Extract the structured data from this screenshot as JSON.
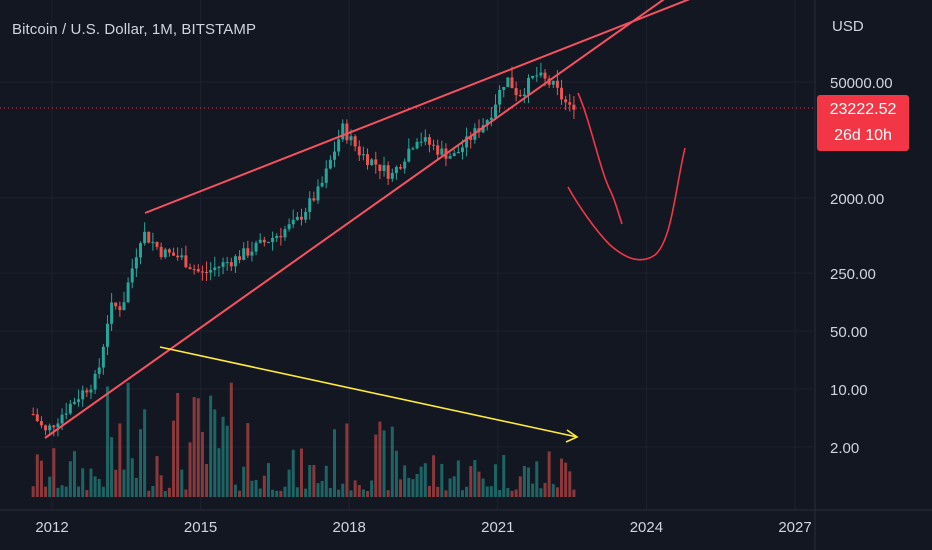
{
  "header": {
    "title": "Bitcoin / U.S. Dollar, 1M, BITSTAMP"
  },
  "price_axis": {
    "currency": "USD"
  },
  "last_price": {
    "value": "23222.52",
    "countdown": "26d 10h"
  },
  "colors": {
    "background": "#131722",
    "up": "#26a69a",
    "down": "#ef5350",
    "trendline": "#f7525f",
    "drawing": "#f23645",
    "arrow": "#ffeb3b",
    "text": "#d1d4dc",
    "grid": "#1e222d"
  },
  "chart_data": {
    "type": "candlestick",
    "title": "Bitcoin / U.S. Dollar, 1M, BITSTAMP",
    "x_axis": {
      "ticks": [
        "2012",
        "2015",
        "2018",
        "2021",
        "2024",
        "2027"
      ],
      "range": [
        2011.3,
        2027.6
      ]
    },
    "y_axis": {
      "scale": "log",
      "ticks": [
        "50000.00",
        "2000.00",
        "250.00",
        "50.00",
        "10.00",
        "2.00"
      ],
      "range": [
        0.9,
        280000
      ]
    },
    "series": [
      {
        "name": "BTCUSD monthly",
        "approx_points": [
          {
            "t": 2011.7,
            "close": 5
          },
          {
            "t": 2011.95,
            "close": 3
          },
          {
            "t": 2012.5,
            "close": 7
          },
          {
            "t": 2013.0,
            "close": 14
          },
          {
            "t": 2013.25,
            "close": 95
          },
          {
            "t": 2013.5,
            "close": 100
          },
          {
            "t": 2013.9,
            "close": 800
          },
          {
            "t": 2014.3,
            "close": 450
          },
          {
            "t": 2014.7,
            "close": 380
          },
          {
            "t": 2015.1,
            "close": 240
          },
          {
            "t": 2015.8,
            "close": 380
          },
          {
            "t": 2016.5,
            "close": 650
          },
          {
            "t": 2017.0,
            "close": 1000
          },
          {
            "t": 2017.5,
            "close": 2600
          },
          {
            "t": 2017.95,
            "close": 14000
          },
          {
            "t": 2018.3,
            "close": 7000
          },
          {
            "t": 2018.95,
            "close": 3800
          },
          {
            "t": 2019.45,
            "close": 11000
          },
          {
            "t": 2019.95,
            "close": 7200
          },
          {
            "t": 2020.2,
            "close": 6400
          },
          {
            "t": 2020.9,
            "close": 19000
          },
          {
            "t": 2021.25,
            "close": 58000
          },
          {
            "t": 2021.5,
            "close": 35000
          },
          {
            "t": 2021.85,
            "close": 61000
          },
          {
            "t": 2022.2,
            "close": 45000
          },
          {
            "t": 2022.55,
            "close": 23222.52
          }
        ]
      }
    ],
    "annotations": {
      "hline": 23222.52
    }
  }
}
